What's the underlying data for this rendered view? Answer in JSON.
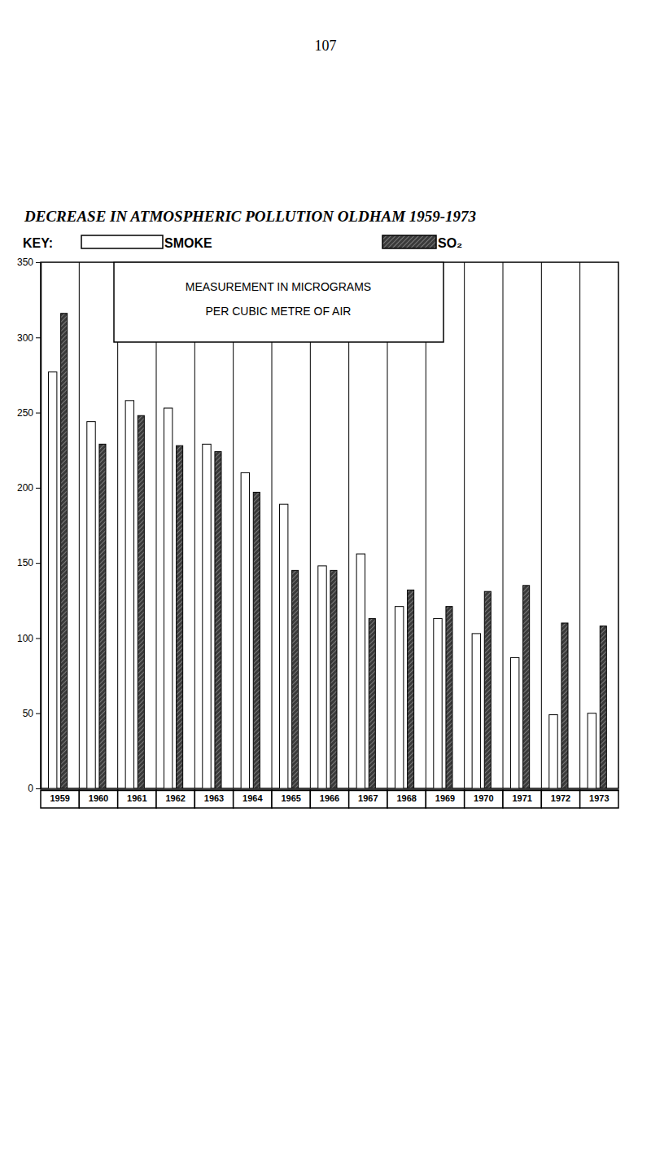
{
  "chart_data": {
    "type": "bar",
    "page_number": "107",
    "title": "DECREASE IN ATMOSPHERIC POLLUTION OLDHAM 1959-1973",
    "legend_title": "KEY:",
    "ylabel": "MEASUREMENT IN MICROGRAMS PER CUBIC METRE OF AIR",
    "categories": [
      "1959",
      "1960",
      "1961",
      "1962",
      "1963",
      "1964",
      "1965",
      "1966",
      "1967",
      "1968",
      "1969",
      "1970",
      "1971",
      "1972",
      "1973"
    ],
    "series": [
      {
        "name": "SMOKE",
        "color": "#ffffff",
        "values": [
          277,
          244,
          258,
          253,
          229,
          210,
          189,
          148,
          156,
          121,
          113,
          103,
          87,
          49,
          50
        ]
      },
      {
        "name": "SO₂",
        "color": "#3a3a3a",
        "values": [
          316,
          229,
          248,
          228,
          224,
          197,
          145,
          145,
          113,
          132,
          121,
          131,
          135,
          110,
          108
        ]
      }
    ],
    "ylim": [
      0,
      350
    ],
    "yticks": [
      0,
      50,
      100,
      150,
      200,
      250,
      300,
      350
    ],
    "grid": false,
    "legend": "top"
  }
}
